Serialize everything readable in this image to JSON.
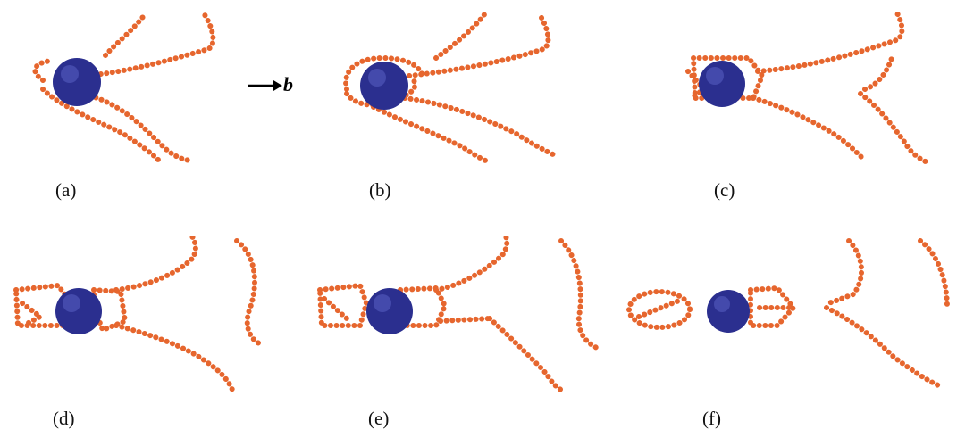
{
  "colors": {
    "dislocation": "#e6662e",
    "dislocation_dark": "#a9411a",
    "precipitate": "#2b2f8f",
    "precipitate_light": "#5a60c4",
    "background": "#ffffff"
  },
  "burgers_vector": {
    "label": "b",
    "arrow_icon": "right-arrow-icon"
  },
  "panels": [
    {
      "id": "a",
      "caption": "(a)"
    },
    {
      "id": "b",
      "caption": "(b)"
    },
    {
      "id": "c",
      "caption": "(c)"
    },
    {
      "id": "d",
      "caption": "(d)"
    },
    {
      "id": "e",
      "caption": "(e)"
    },
    {
      "id": "f",
      "caption": "(f)"
    }
  ]
}
